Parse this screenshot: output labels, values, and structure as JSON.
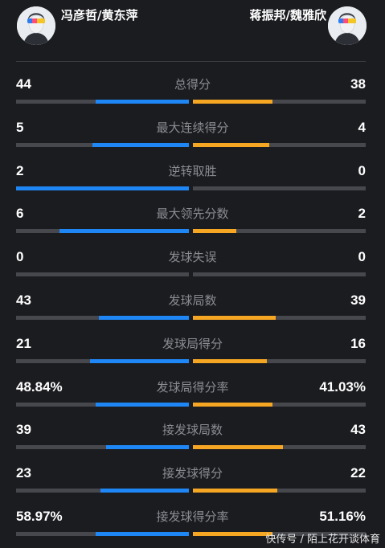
{
  "players": {
    "left": "冯彦哲/黄东萍",
    "right": "蒋振邦/魏雅欣"
  },
  "colors": {
    "left_bar": "#1f86f5",
    "right_bar": "#f5a623",
    "track": "#46484e"
  },
  "stats": [
    {
      "label": "总得分",
      "left": "44",
      "right": "38",
      "left_frac": 0.54,
      "right_frac": 0.46
    },
    {
      "label": "最大连续得分",
      "left": "5",
      "right": "4",
      "left_frac": 0.56,
      "right_frac": 0.44
    },
    {
      "label": "逆转取胜",
      "left": "2",
      "right": "0",
      "left_frac": 1.0,
      "right_frac": 0.0
    },
    {
      "label": "最大领先分数",
      "left": "6",
      "right": "2",
      "left_frac": 0.75,
      "right_frac": 0.25
    },
    {
      "label": "发球失误",
      "left": "0",
      "right": "0",
      "left_frac": 0.0,
      "right_frac": 0.0
    },
    {
      "label": "发球局数",
      "left": "43",
      "right": "39",
      "left_frac": 0.52,
      "right_frac": 0.48
    },
    {
      "label": "发球局得分",
      "left": "21",
      "right": "16",
      "left_frac": 0.57,
      "right_frac": 0.43
    },
    {
      "label": "发球局得分率",
      "left": "48.84%",
      "right": "41.03%",
      "left_frac": 0.54,
      "right_frac": 0.46
    },
    {
      "label": "接发球局数",
      "left": "39",
      "right": "43",
      "left_frac": 0.48,
      "right_frac": 0.52
    },
    {
      "label": "接发球得分",
      "left": "23",
      "right": "22",
      "left_frac": 0.51,
      "right_frac": 0.49
    },
    {
      "label": "接发球得分率",
      "left": "58.97%",
      "right": "51.16%",
      "left_frac": 0.54,
      "right_frac": 0.46
    }
  ],
  "watermark": "快传号 / 陌上花开谈体育"
}
